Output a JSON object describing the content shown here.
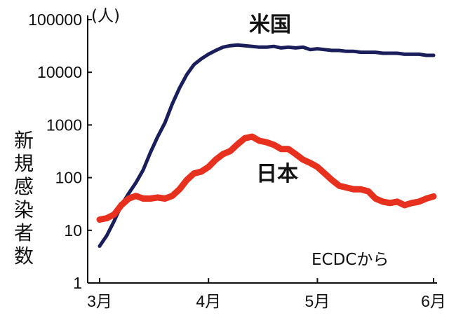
{
  "chart_data": {
    "type": "line",
    "yscale": "log",
    "ylabel": "新規感染者数",
    "yunit": "(人)",
    "source": "ECDCから",
    "x_ticks": [
      "3月",
      "4月",
      "5月",
      "6月"
    ],
    "y_ticks": [
      "1",
      "10",
      "100",
      "1000",
      "10000",
      "100000"
    ],
    "ylim": [
      1,
      100000
    ],
    "grid": false,
    "x": [
      "3/1",
      "3/3",
      "3/5",
      "3/7",
      "3/9",
      "3/11",
      "3/13",
      "3/15",
      "3/17",
      "3/19",
      "3/21",
      "3/23",
      "3/25",
      "3/27",
      "3/29",
      "3/31",
      "4/2",
      "4/4",
      "4/6",
      "4/8",
      "4/10",
      "4/12",
      "4/14",
      "4/16",
      "4/18",
      "4/20",
      "4/22",
      "4/24",
      "4/26",
      "4/28",
      "4/30",
      "5/2",
      "5/4",
      "5/6",
      "5/8",
      "5/10",
      "5/12",
      "5/14",
      "5/16",
      "5/18",
      "5/20",
      "5/22",
      "5/24",
      "5/26",
      "5/28",
      "5/30",
      "6/1"
    ],
    "series": [
      {
        "name": "米国",
        "color": "#1a1f5c",
        "values": [
          5,
          8,
          15,
          30,
          50,
          80,
          140,
          300,
          600,
          1100,
          2500,
          5000,
          9000,
          14000,
          18000,
          22000,
          26000,
          30000,
          32000,
          33000,
          32000,
          31000,
          30000,
          30000,
          31000,
          29000,
          30000,
          29000,
          30000,
          27000,
          28000,
          27000,
          26000,
          26000,
          25000,
          25000,
          24000,
          24000,
          24000,
          23000,
          23000,
          23000,
          22000,
          22000,
          22000,
          21000,
          21000
        ]
      },
      {
        "name": "日本",
        "color": "#e8301e",
        "values": [
          16,
          17,
          20,
          30,
          40,
          45,
          40,
          40,
          42,
          40,
          45,
          60,
          90,
          120,
          130,
          160,
          220,
          280,
          320,
          430,
          560,
          600,
          500,
          470,
          420,
          350,
          350,
          280,
          220,
          190,
          160,
          120,
          90,
          70,
          65,
          60,
          60,
          55,
          40,
          35,
          33,
          35,
          30,
          33,
          35,
          40,
          44
        ]
      }
    ]
  }
}
